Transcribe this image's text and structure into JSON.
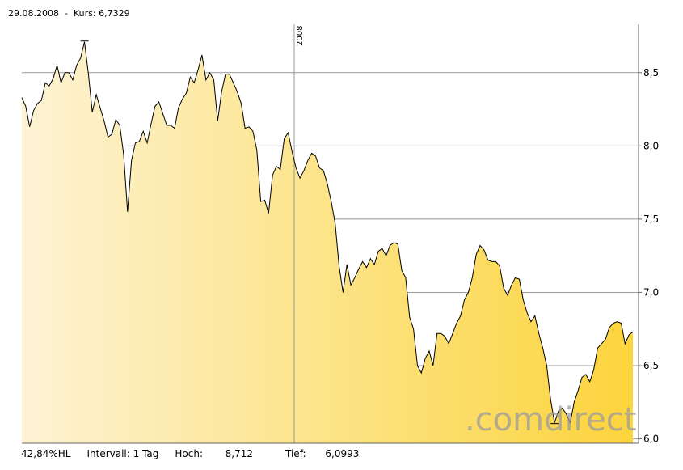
{
  "header": {
    "date": "29.08.2008",
    "separator": "-",
    "kurs_label": "Kurs:",
    "kurs_value": "6,7329"
  },
  "footer": {
    "hl": "42,84%HL",
    "interval": "Intervall: 1 Tag",
    "hoch_label": "Hoch:",
    "hoch_value": "8,712",
    "tief_label": "Tief:",
    "tief_value": "6,0993"
  },
  "watermark": ".comdirect",
  "colors": {
    "fill_start": "#fdf3d4",
    "fill_end": "#fcd43c",
    "line": "#000000",
    "grid": "#999999"
  },
  "chart_data": {
    "type": "area",
    "title": "",
    "xlabel": "",
    "ylabel": "",
    "ylim": [
      5.97,
      8.83
    ],
    "yticks": [
      "8,5",
      "8,0",
      "7,5",
      "7,0",
      "6,5",
      "6,0"
    ],
    "ytick_values": [
      8.5,
      8.0,
      7.5,
      7.0,
      6.5,
      6.0
    ],
    "x_marker_label": "2008",
    "high_value": 8.712,
    "low_value": 6.0993,
    "last_value": 6.7329,
    "values": [
      8.33,
      8.27,
      8.13,
      8.24,
      8.29,
      8.31,
      8.43,
      8.41,
      8.46,
      8.55,
      8.43,
      8.5,
      8.5,
      8.45,
      8.55,
      8.6,
      8.71,
      8.49,
      8.23,
      8.35,
      8.26,
      8.17,
      8.06,
      8.08,
      8.18,
      8.14,
      7.94,
      7.55,
      7.9,
      8.02,
      8.03,
      8.1,
      8.02,
      8.15,
      8.27,
      8.3,
      8.22,
      8.14,
      8.14,
      8.12,
      8.26,
      8.32,
      8.36,
      8.47,
      8.43,
      8.52,
      8.62,
      8.45,
      8.5,
      8.45,
      8.17,
      8.37,
      8.49,
      8.49,
      8.43,
      8.37,
      8.29,
      8.12,
      8.13,
      8.1,
      7.97,
      7.62,
      7.63,
      7.54,
      7.8,
      7.86,
      7.84,
      8.05,
      8.09,
      7.96,
      7.85,
      7.78,
      7.83,
      7.9,
      7.95,
      7.93,
      7.85,
      7.83,
      7.74,
      7.62,
      7.47,
      7.18,
      7.0,
      7.19,
      7.05,
      7.1,
      7.16,
      7.21,
      7.17,
      7.23,
      7.19,
      7.28,
      7.3,
      7.25,
      7.32,
      7.34,
      7.33,
      7.15,
      7.1,
      6.83,
      6.75,
      6.5,
      6.45,
      6.55,
      6.6,
      6.5,
      6.72,
      6.72,
      6.7,
      6.65,
      6.72,
      6.79,
      6.84,
      6.95,
      7.0,
      7.1,
      7.26,
      7.32,
      7.29,
      7.22,
      7.21,
      7.21,
      7.18,
      7.03,
      6.98,
      7.05,
      7.1,
      7.09,
      6.95,
      6.86,
      6.8,
      6.84,
      6.72,
      6.62,
      6.5,
      6.27,
      6.11,
      6.19,
      6.21,
      6.17,
      6.11,
      6.25,
      6.33,
      6.42,
      6.44,
      6.39,
      6.47,
      6.62,
      6.65,
      6.68,
      6.76,
      6.79,
      6.8,
      6.79,
      6.65,
      6.71,
      6.73
    ]
  }
}
